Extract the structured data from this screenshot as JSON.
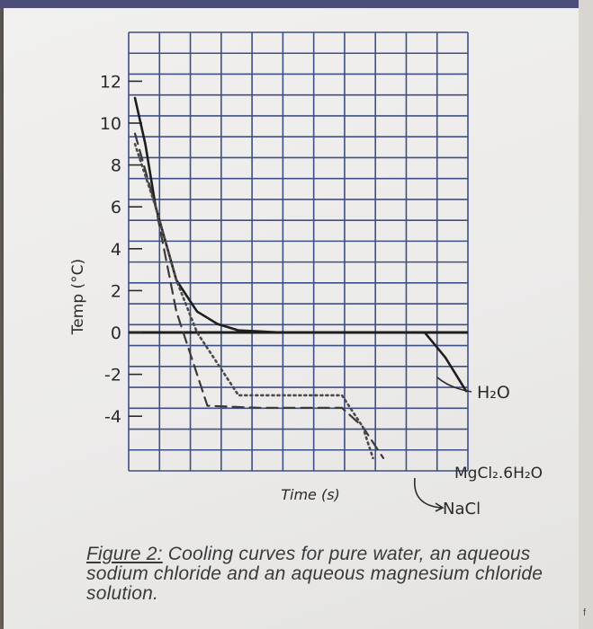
{
  "caption": {
    "figure_label": "Figure 2:",
    "text": " Cooling curves for pure water, an aqueous sodium chloride and an aqueous magnesium chloride solution."
  },
  "chart_data": {
    "type": "line",
    "title": "",
    "xlabel": "Time (s)",
    "ylabel": "Temp (°C)",
    "ylim": [
      -6,
      14
    ],
    "y_ticks": [
      "12",
      "10",
      "8",
      "6",
      "4",
      "2",
      "0",
      "-2",
      "-4"
    ],
    "grid": true,
    "series": [
      {
        "name": "H₂O",
        "style": "solid",
        "color": "#1e1e1e",
        "x": [
          0,
          0.5,
          1,
          2,
          3,
          4,
          5,
          7,
          10,
          14,
          15,
          16
        ],
        "y": [
          11.2,
          9,
          6,
          2.5,
          1,
          0.4,
          0.1,
          0,
          0,
          0,
          -1.2,
          -2.8
        ]
      },
      {
        "name": "NaCl",
        "style": "dashed",
        "color": "#3a3a3a",
        "x": [
          0,
          1,
          2,
          3,
          3.5,
          6,
          10,
          11,
          12
        ],
        "y": [
          9.5,
          6,
          1,
          -2,
          -3.5,
          -3.6,
          -3.6,
          -4.5,
          -6
        ]
      },
      {
        "name": "MgCl₂.6H₂O",
        "style": "dotted",
        "color": "#4a4a4a",
        "x": [
          0,
          1,
          2,
          3,
          4,
          5,
          8,
          10,
          11,
          11.5
        ],
        "y": [
          9,
          6,
          2.5,
          0,
          -1.5,
          -3,
          -3,
          -3,
          -4.5,
          -6
        ]
      }
    ],
    "annotations": [
      "H₂O",
      "MgCl₂.6H₂O",
      "NaCl"
    ]
  }
}
